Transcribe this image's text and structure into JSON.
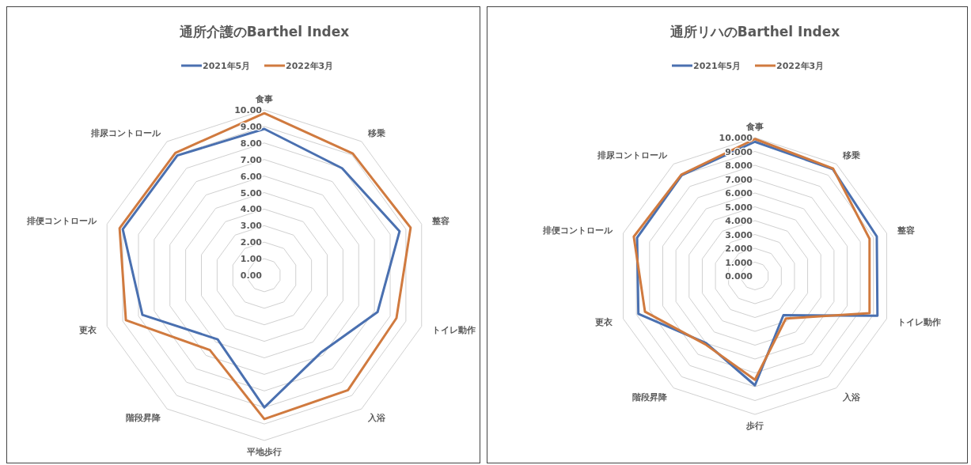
{
  "chart_data": [
    {
      "type": "radar",
      "title": "通所介護のBarthel Index",
      "categories": [
        "食事",
        "移乗",
        "整容",
        "トイレ動作",
        "入浴",
        "平地歩行",
        "階段昇降",
        "更衣",
        "排便コントロール",
        "排尿コントロール"
      ],
      "series": [
        {
          "name": "2021年5月",
          "color": "#4a70b0",
          "values": [
            8.85,
            8.0,
            8.6,
            7.2,
            5.8,
            8.0,
            4.8,
            7.75,
            9.0,
            8.95
          ]
        },
        {
          "name": "2022年3月",
          "color": "#d07a3f",
          "values": [
            9.8,
            9.1,
            9.3,
            8.4,
            8.6,
            8.7,
            5.6,
            8.8,
            9.2,
            9.15
          ]
        }
      ],
      "ylim": [
        0,
        10
      ],
      "yticks": [
        {
          "value": 0,
          "label": "0.00"
        },
        {
          "value": 1,
          "label": "1.00"
        },
        {
          "value": 2,
          "label": "2.00"
        },
        {
          "value": 3,
          "label": "3.00"
        },
        {
          "value": 4,
          "label": "4.00"
        },
        {
          "value": 5,
          "label": "5.00"
        },
        {
          "value": 6,
          "label": "6.00"
        },
        {
          "value": 7,
          "label": "7.00"
        },
        {
          "value": 8,
          "label": "8.00"
        },
        {
          "value": 9,
          "label": "9.00"
        },
        {
          "value": 10,
          "label": "10.00"
        }
      ],
      "grid": true,
      "legend": "top"
    },
    {
      "type": "radar",
      "title": "通所リハのBarthel Index",
      "categories": [
        "食事",
        "移乗",
        "整容",
        "トイレ動作",
        "入浴",
        "歩行",
        "階段昇降",
        "更衣",
        "排便コントロール",
        "排尿コントロール"
      ],
      "series": [
        {
          "name": "2021年5月",
          "color": "#4a70b0",
          "values": [
            9.7,
            9.55,
            9.25,
            9.3,
            3.5,
            7.9,
            6.0,
            8.85,
            8.95,
            9.0
          ]
        },
        {
          "name": "2022年3月",
          "color": "#d07a3f",
          "values": [
            9.9,
            9.6,
            8.7,
            8.7,
            3.8,
            7.5,
            6.1,
            8.35,
            9.2,
            9.05
          ]
        }
      ],
      "ylim": [
        0,
        10
      ],
      "yticks": [
        {
          "value": 0,
          "label": "0.000"
        },
        {
          "value": 1,
          "label": "1.000"
        },
        {
          "value": 2,
          "label": "2.000"
        },
        {
          "value": 3,
          "label": "3.000"
        },
        {
          "value": 4,
          "label": "4.000"
        },
        {
          "value": 5,
          "label": "5.000"
        },
        {
          "value": 6,
          "label": "6.000"
        },
        {
          "value": 7,
          "label": "7.000"
        },
        {
          "value": 8,
          "label": "8.000"
        },
        {
          "value": 9,
          "label": "9.000"
        },
        {
          "value": 10,
          "label": "10.000"
        }
      ],
      "grid": true,
      "legend": "top"
    }
  ]
}
